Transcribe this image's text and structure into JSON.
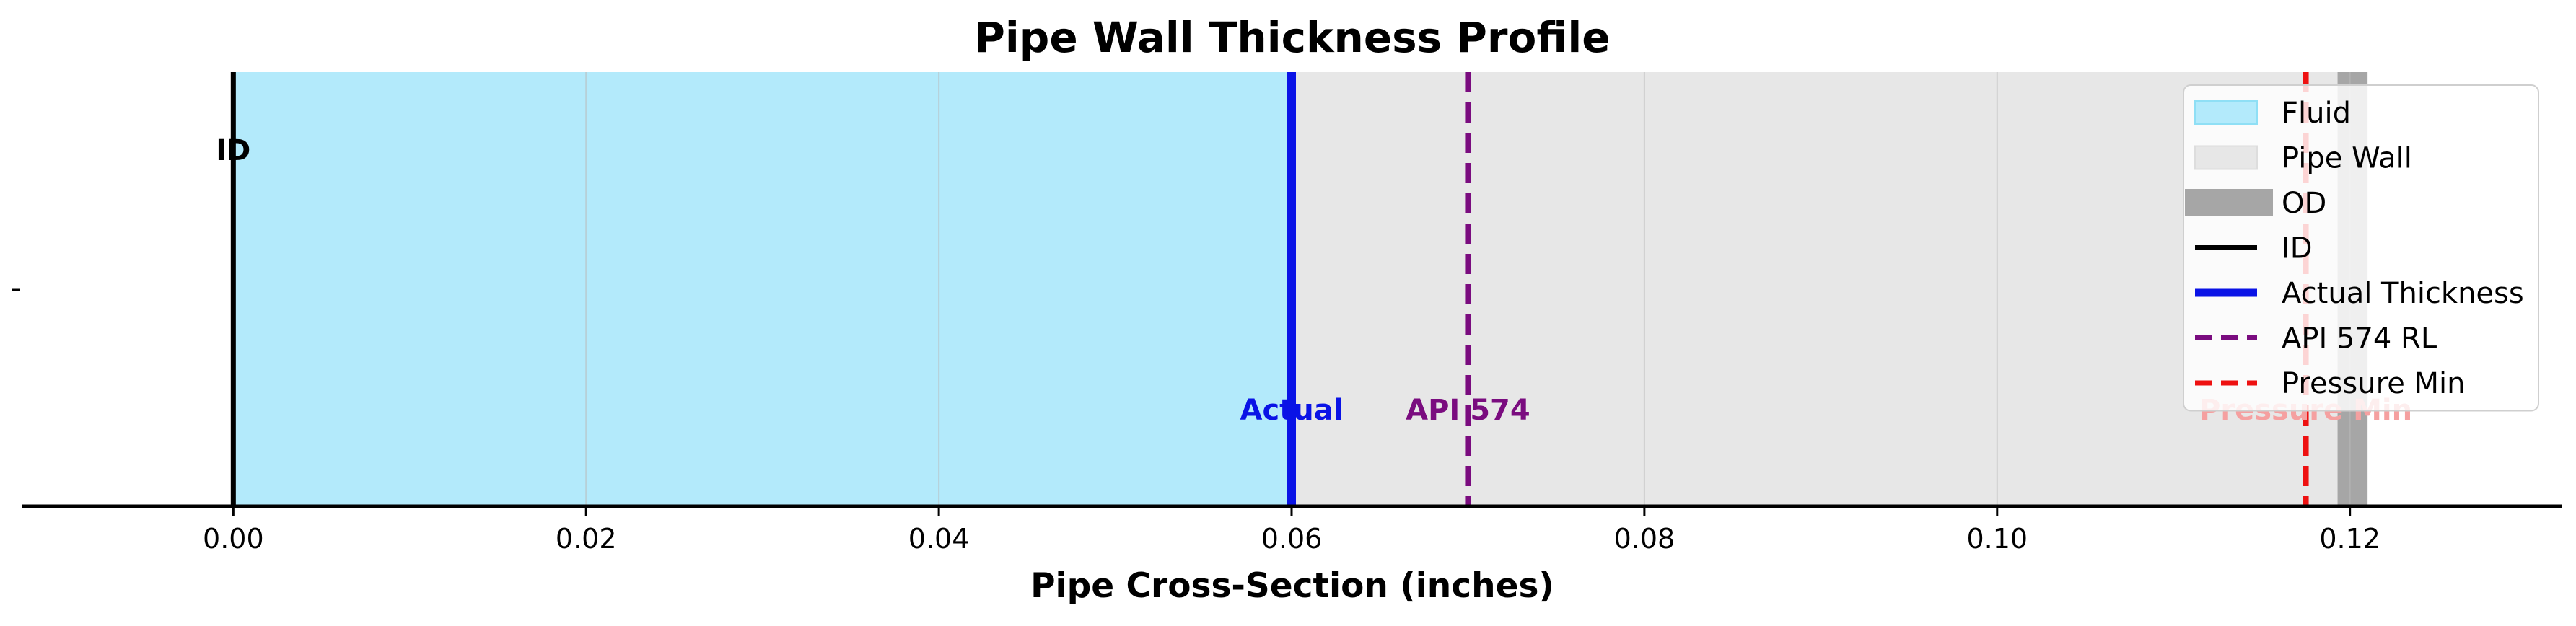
{
  "chart_data": {
    "type": "area",
    "title": "Pipe Wall Thickness Profile",
    "xlabel": "Pipe Cross-Section (inches)",
    "ylabel": "",
    "xlim": [
      -0.012,
      0.132
    ],
    "xticks": [
      0.0,
      0.02,
      0.04,
      0.06,
      0.08,
      0.1,
      0.12
    ],
    "xtick_labels": [
      "0.00",
      "0.02",
      "0.04",
      "0.06",
      "0.08",
      "0.10",
      "0.12"
    ],
    "grid": true,
    "regions": [
      {
        "name": "Fluid",
        "x_start": 0.0,
        "x_end": 0.06,
        "color": "#b3eafb"
      },
      {
        "name": "Pipe Wall",
        "x_start": 0.06,
        "x_end": 0.121,
        "color": "#e7e7e7"
      },
      {
        "name": "OD",
        "x_start": 0.1193,
        "x_end": 0.121,
        "color": "#a6a6a6"
      }
    ],
    "lines": [
      {
        "name": "ID",
        "x": 0.0,
        "color": "#000000",
        "style": "solid",
        "label": "ID"
      },
      {
        "name": "Actual Thickness",
        "x": 0.06,
        "color": "#0a13e6",
        "style": "solid",
        "label": "Actual"
      },
      {
        "name": "API 574 RL",
        "x": 0.07,
        "color": "#7a0c7f",
        "style": "dashed",
        "label": "API 574"
      },
      {
        "name": "Pressure Min",
        "x": 0.1175,
        "color": "#ee1111",
        "style": "dashed",
        "label": "Pressure Min"
      }
    ],
    "legend": {
      "placement": "upper-right",
      "entries": [
        {
          "label": "Fluid",
          "kind": "patch",
          "color": "#b3eafb"
        },
        {
          "label": "Pipe Wall",
          "kind": "patch",
          "color": "#e7e7e7"
        },
        {
          "label": "OD",
          "kind": "thick-line",
          "color": "#a6a6a6"
        },
        {
          "label": "ID",
          "kind": "line",
          "color": "#000000"
        },
        {
          "label": "Actual Thickness",
          "kind": "line",
          "color": "#0a13e6"
        },
        {
          "label": "API 574 RL",
          "kind": "dashed",
          "color": "#7a0c7f"
        },
        {
          "label": "Pressure Min",
          "kind": "dashed",
          "color": "#ee1111"
        }
      ]
    },
    "annotations": [
      {
        "text": "ID",
        "x": 0.0,
        "color": "#000000",
        "vertical": "upper"
      },
      {
        "text": "Actual",
        "x": 0.06,
        "color": "#0a13e6",
        "vertical": "lower"
      },
      {
        "text": "API 574",
        "x": 0.07,
        "color": "#7a0c7f",
        "vertical": "lower"
      },
      {
        "text": "Pressure Min",
        "x": 0.1175,
        "color": "#f5a0a0",
        "vertical": "lower"
      }
    ]
  }
}
